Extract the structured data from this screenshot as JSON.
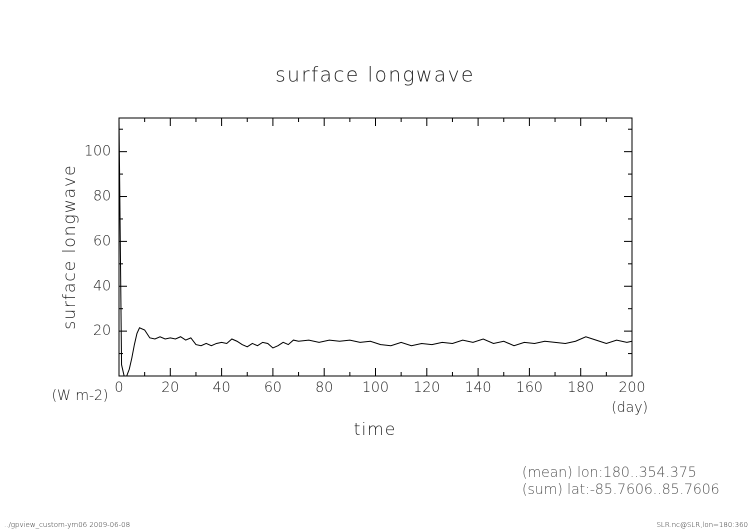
{
  "chart_data": {
    "type": "line",
    "title": "surface longwave",
    "ylabel": "surface longwave",
    "yunits": "(W m-2)",
    "xlabel": "time",
    "xunits": "(day)",
    "annotations": [
      "(mean) lon:180..354.375",
      "(sum) lat:-85.7606..85.7606"
    ],
    "footer_left": "../gpview_custom-ym06  2009-06-08",
    "footer_right": "SLR.nc@SLR,lon=180:360",
    "color": "#000000",
    "x": [
      0,
      0.5,
      1,
      2,
      3,
      4,
      5,
      6,
      7,
      8,
      10,
      12,
      14,
      16,
      18,
      20,
      22,
      24,
      26,
      28,
      30,
      32,
      34,
      36,
      38,
      40,
      42,
      44,
      46,
      48,
      50,
      52,
      54,
      56,
      58,
      60,
      62,
      64,
      66,
      68,
      70,
      74,
      78,
      82,
      86,
      90,
      94,
      98,
      102,
      106,
      110,
      114,
      118,
      122,
      126,
      130,
      134,
      138,
      142,
      146,
      150,
      154,
      158,
      162,
      166,
      170,
      174,
      178,
      182,
      186,
      190,
      194,
      198,
      200
    ],
    "values": [
      115,
      60,
      5,
      0,
      0,
      3,
      8,
      14,
      19,
      21.5,
      20.5,
      17,
      16.5,
      17.5,
      16.5,
      17,
      16.5,
      17.5,
      16,
      17,
      14,
      13.5,
      14.5,
      13.5,
      14.5,
      15,
      14.5,
      16.5,
      15.5,
      14,
      13,
      14.5,
      13.5,
      15,
      14.5,
      12.5,
      13.5,
      15,
      14,
      16,
      15.5,
      16,
      15,
      16,
      15.5,
      16,
      15,
      15.5,
      14,
      13.5,
      15,
      13.5,
      14.5,
      14,
      15,
      14.5,
      16,
      15,
      16.5,
      14.5,
      15.5,
      13.5,
      15,
      14.5,
      15.5,
      15,
      14.5,
      15.5,
      17.5,
      16,
      14.5,
      16,
      15,
      15.5
    ],
    "xlim": [
      0,
      200
    ],
    "xticks": [
      0,
      20,
      40,
      60,
      80,
      100,
      120,
      140,
      160,
      180,
      200
    ],
    "xminorticks": [
      10,
      30,
      50,
      70,
      90,
      110,
      130,
      150,
      170,
      190
    ],
    "ylim": [
      0,
      115
    ],
    "yticks": [
      20,
      40,
      60,
      80,
      100
    ],
    "yminorticks": [
      10,
      30,
      50,
      70,
      90,
      110
    ]
  }
}
